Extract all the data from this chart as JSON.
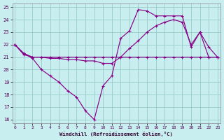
{
  "background_color": "#c8eef0",
  "grid_color": "#99cccc",
  "line_color": "#880088",
  "xlabel": "Windchill (Refroidissement éolien,°C)",
  "xlim": [
    -0.3,
    23.3
  ],
  "ylim": [
    15.7,
    25.3
  ],
  "yticks": [
    16,
    17,
    18,
    19,
    20,
    21,
    22,
    23,
    24,
    25
  ],
  "xticks": [
    0,
    1,
    2,
    3,
    4,
    5,
    6,
    7,
    8,
    9,
    10,
    11,
    12,
    13,
    14,
    15,
    16,
    17,
    18,
    19,
    20,
    21,
    22,
    23
  ],
  "line1_y": [
    22.0,
    21.3,
    20.9,
    20.0,
    19.5,
    19.0,
    18.3,
    17.8,
    16.7,
    16.0,
    18.7,
    19.5,
    22.5,
    23.1,
    24.8,
    24.7,
    24.3,
    24.3,
    24.3,
    24.3,
    21.8,
    23.0,
    21.8,
    21.0
  ],
  "line2_y": [
    22.0,
    21.3,
    21.0,
    21.0,
    20.9,
    20.9,
    20.8,
    20.8,
    20.7,
    20.7,
    20.5,
    20.5,
    21.0,
    21.7,
    22.3,
    23.0,
    23.5,
    23.8,
    24.0,
    23.8,
    22.0,
    23.0,
    21.0,
    21.0
  ],
  "line3_y": [
    22.0,
    21.2,
    21.0,
    21.0,
    21.0,
    21.0,
    21.0,
    21.0,
    21.0,
    21.0,
    21.0,
    21.0,
    21.0,
    21.0,
    21.0,
    21.0,
    21.0,
    21.0,
    21.0,
    21.0,
    21.0,
    21.0,
    21.0,
    21.0
  ]
}
